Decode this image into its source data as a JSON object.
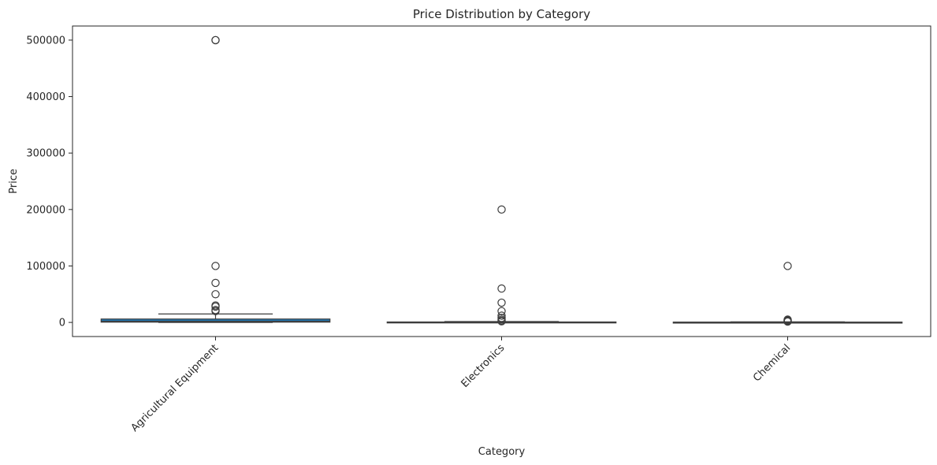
{
  "chart_data": {
    "type": "box",
    "title": "Price Distribution by Category",
    "xlabel": "Category",
    "ylabel": "Price",
    "ylim": [
      -25000,
      525000
    ],
    "yticks": [
      0,
      100000,
      200000,
      300000,
      400000,
      500000
    ],
    "ytick_labels": [
      "0",
      "100000",
      "200000",
      "300000",
      "400000",
      "500000"
    ],
    "grid": false,
    "legend": "none",
    "box_color": "#1f77b4",
    "line_color": "#3d3d3d",
    "categories": [
      {
        "name": "Agricultural Equipment",
        "q1": 500,
        "median": 2000,
        "q3": 6000,
        "whisker_low": 0,
        "whisker_high": 15000,
        "outliers": [
          500000,
          500000,
          100000,
          70000,
          50000,
          30000,
          28000,
          22000,
          20000
        ]
      },
      {
        "name": "Electronics",
        "q1": 100,
        "median": 300,
        "q3": 800,
        "whisker_low": 0,
        "whisker_high": 1500,
        "outliers": [
          200000,
          60000,
          35000,
          20000,
          12000,
          8000,
          5000,
          3000,
          2000
        ]
      },
      {
        "name": "Chemical",
        "q1": 100,
        "median": 250,
        "q3": 500,
        "whisker_low": 0,
        "whisker_high": 1000,
        "outliers": [
          100000,
          5000,
          4000,
          3000,
          2000,
          1500
        ]
      }
    ]
  }
}
